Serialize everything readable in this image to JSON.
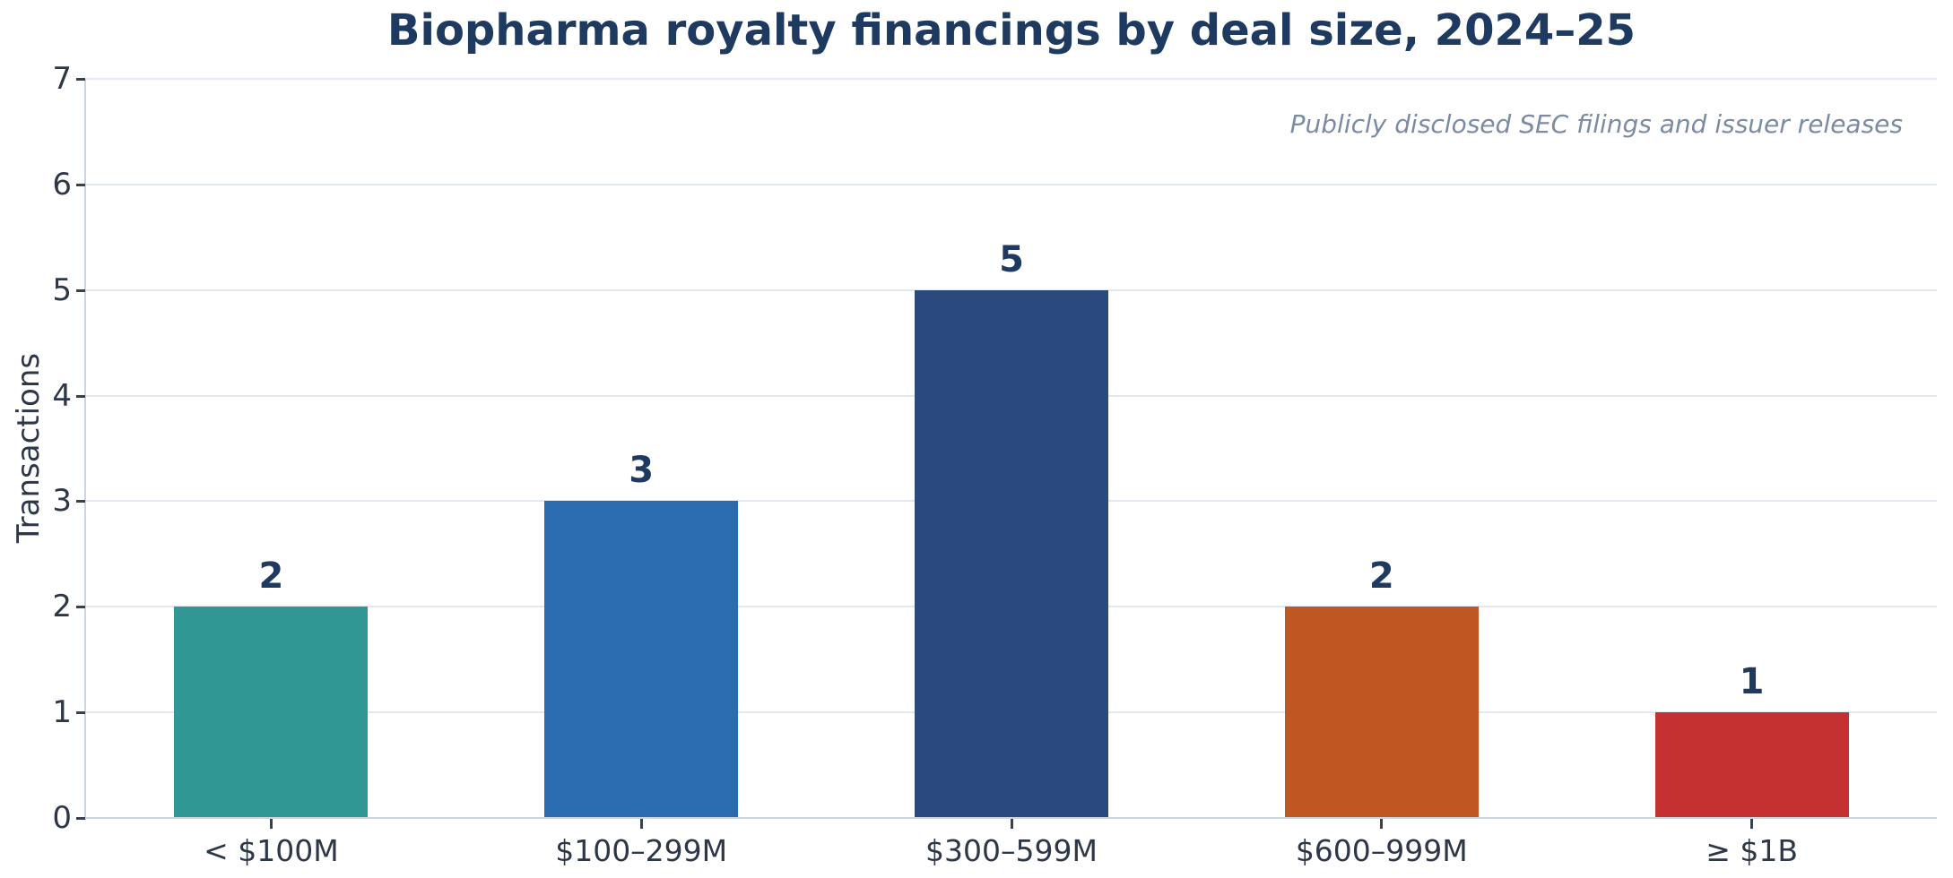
{
  "chart_data": {
    "type": "bar",
    "title": "Biopharma royalty financings by deal size, 2024–25",
    "annotation": "Publicly disclosed SEC filings and issuer releases",
    "xlabel": "",
    "ylabel": "Transactions",
    "categories": [
      "< $100M",
      "$100–299M",
      "$300–599M",
      "$600–999M",
      "≥ $1B"
    ],
    "values": [
      2,
      3,
      5,
      2,
      1
    ],
    "value_labels": [
      "2",
      "3",
      "5",
      "2",
      "1"
    ],
    "bar_colors": [
      "#319795",
      "#2b6cb0",
      "#2a4a7e",
      "#c05621",
      "#c53030"
    ],
    "ylim": [
      0,
      7
    ],
    "yticks": [
      0,
      1,
      2,
      3,
      4,
      5,
      6,
      7
    ],
    "grid": "horizontal",
    "legend": "none",
    "style": {
      "background_color": "#ffffff",
      "title_color": "#1e3a60",
      "value_label_color": "#1e3a60",
      "tick_label_color": "#2d3748",
      "axis_label_color": "#2d3748",
      "annotation_color": "#7a8ba3",
      "spine_color": "#ccd6e2",
      "gridline_color": "#e2e9f1",
      "tick_mark_color": "#39414d"
    }
  }
}
